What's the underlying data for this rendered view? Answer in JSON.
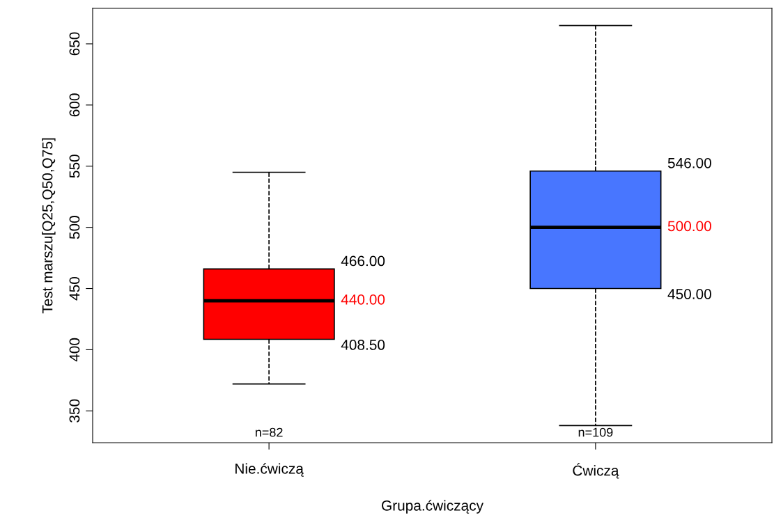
{
  "chart_data": {
    "type": "box",
    "xlabel": "Grupa.ćwiczący",
    "ylabel": "Test marszu[Q25,Q50,Q75]",
    "categories": [
      "Nie.ćwiczą",
      "Ćwiczą"
    ],
    "colors": [
      "#ff0000",
      "#4876ff"
    ],
    "boxes": [
      {
        "low": 372,
        "q1": 408.5,
        "median": 440,
        "q3": 466,
        "high": 545
      },
      {
        "low": 338,
        "q1": 450,
        "median": 500,
        "q3": 546,
        "high": 665
      }
    ],
    "ylim": [
      324,
      679
    ],
    "yticks": [
      350,
      400,
      450,
      500,
      550,
      600,
      650
    ],
    "grid": false,
    "line_style": "dashed",
    "annotations": [
      "466.00",
      "440.00",
      "408.50",
      "546.00",
      "500.00",
      "450.00",
      "n=82",
      "n=109"
    ]
  }
}
